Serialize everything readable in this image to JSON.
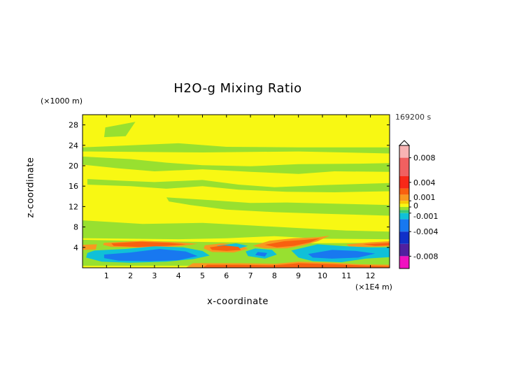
{
  "chart_data": {
    "type": "heatmap",
    "title": "H2O-g Mixing Ratio",
    "xlabel": "x-coordinate",
    "ylabel": "z-coordinate",
    "x_unit": "(×1E4 m)",
    "y_unit": "(×1000 m)",
    "time_label": "169200 s",
    "xlim": [
      0,
      12.8
    ],
    "ylim": [
      0,
      30
    ],
    "xticks": [
      "1",
      "2",
      "3",
      "4",
      "5",
      "6",
      "7",
      "8",
      "9",
      "10",
      "11",
      "12"
    ],
    "yticks": [
      "4",
      "8",
      "12",
      "16",
      "20",
      "24",
      "28"
    ],
    "background_color": "#f8f813",
    "colorbar": {
      "range": [
        -0.01,
        0.01
      ],
      "tick_labels": [
        "0.008",
        "0.004",
        "0.001",
        "0",
        "-0.001",
        "-0.004",
        "-0.008"
      ],
      "tick_values": [
        0.008,
        0.004,
        0.001,
        0,
        -0.001,
        -0.004,
        -0.008
      ],
      "colors": [
        {
          "from": 0.008,
          "to": 0.01,
          "color": "#f8b4b4"
        },
        {
          "from": 0.005,
          "to": 0.008,
          "color": "#f06060"
        },
        {
          "from": 0.003,
          "to": 0.005,
          "color": "#f82818"
        },
        {
          "from": 0.002,
          "to": 0.003,
          "color": "#f86010"
        },
        {
          "from": 0.001,
          "to": 0.002,
          "color": "#f89820"
        },
        {
          "from": 0.0005,
          "to": 0.001,
          "color": "#f8c800"
        },
        {
          "from": 0,
          "to": 0.0005,
          "color": "#f8f813"
        },
        {
          "from": -0.0005,
          "to": 0,
          "color": "#98e030"
        },
        {
          "from": -0.001,
          "to": -0.0005,
          "color": "#38c878"
        },
        {
          "from": -0.002,
          "to": -0.001,
          "color": "#10c0d8"
        },
        {
          "from": -0.004,
          "to": -0.002,
          "color": "#1878f0"
        },
        {
          "from": -0.006,
          "to": -0.004,
          "color": "#1030c8"
        },
        {
          "from": -0.008,
          "to": -0.006,
          "color": "#5020a0"
        },
        {
          "from": -0.01,
          "to": -0.008,
          "color": "#f010c0"
        }
      ]
    },
    "regions": [
      {
        "value": -0.0003,
        "points": [
          [
            0.95,
            27.5
          ],
          [
            2.2,
            28.6
          ],
          [
            1.8,
            25.8
          ],
          [
            0.9,
            25.6
          ]
        ]
      },
      {
        "value": -0.0003,
        "points": [
          [
            0,
            23.6
          ],
          [
            4.0,
            24.4
          ],
          [
            6.0,
            23.7
          ],
          [
            9.0,
            23.6
          ],
          [
            12.8,
            23.6
          ],
          [
            12.8,
            22.4
          ],
          [
            9.0,
            22.8
          ],
          [
            5.0,
            22.6
          ],
          [
            0,
            22.8
          ]
        ]
      },
      {
        "value": -0.0003,
        "points": [
          [
            0,
            21.8
          ],
          [
            2.0,
            21.3
          ],
          [
            3.5,
            20.6
          ],
          [
            5.0,
            20.1
          ],
          [
            7.0,
            19.9
          ],
          [
            9.0,
            20.3
          ],
          [
            11.5,
            20.4
          ],
          [
            12.8,
            20.5
          ],
          [
            12.8,
            18.8
          ],
          [
            10.5,
            18.9
          ],
          [
            9.0,
            18.4
          ],
          [
            7.0,
            18.8
          ],
          [
            5.0,
            19.3
          ],
          [
            3.0,
            18.9
          ],
          [
            1.5,
            19.5
          ],
          [
            0,
            20.2
          ]
        ]
      },
      {
        "value": -0.0003,
        "points": [
          [
            0.2,
            17.4
          ],
          [
            1.5,
            17.1
          ],
          [
            3.0,
            16.8
          ],
          [
            5.0,
            17.2
          ],
          [
            6.5,
            16.3
          ],
          [
            8.0,
            15.8
          ],
          [
            10.0,
            16.2
          ],
          [
            12.8,
            16.6
          ],
          [
            12.8,
            15.0
          ],
          [
            10.5,
            14.8
          ],
          [
            8.5,
            14.9
          ],
          [
            6.5,
            15.3
          ],
          [
            5.0,
            16.0
          ],
          [
            3.5,
            15.5
          ],
          [
            2.0,
            16.0
          ],
          [
            0.2,
            16.3
          ]
        ]
      },
      {
        "value": -0.0003,
        "points": [
          [
            3.5,
            13.8
          ],
          [
            5.5,
            13.2
          ],
          [
            7.0,
            12.7
          ],
          [
            8.5,
            12.8
          ],
          [
            12.8,
            12.3
          ],
          [
            12.8,
            10.2
          ],
          [
            10.0,
            10.6
          ],
          [
            8.0,
            10.9
          ],
          [
            6.0,
            11.4
          ],
          [
            4.5,
            12.3
          ],
          [
            3.6,
            13.0
          ]
        ]
      },
      {
        "value": -0.0003,
        "points": [
          [
            0,
            9.3
          ],
          [
            2.5,
            8.6
          ],
          [
            5.0,
            8.8
          ],
          [
            7.0,
            8.3
          ],
          [
            9.0,
            7.8
          ],
          [
            11.0,
            7.3
          ],
          [
            12.8,
            7.1
          ],
          [
            12.8,
            5.6
          ],
          [
            10.0,
            5.7
          ],
          [
            8.0,
            6.2
          ],
          [
            6.0,
            5.8
          ],
          [
            4.0,
            5.6
          ],
          [
            2.0,
            5.7
          ],
          [
            0,
            5.8
          ]
        ]
      },
      {
        "value": -0.0003,
        "points": [
          [
            0,
            5.5
          ],
          [
            3.0,
            5.2
          ],
          [
            6.0,
            5.0
          ],
          [
            9.0,
            4.8
          ],
          [
            12.8,
            4.9
          ],
          [
            12.8,
            0.4
          ],
          [
            0,
            0.4
          ]
        ]
      },
      {
        "value": 0.0015,
        "points": [
          [
            0,
            4.5
          ],
          [
            0.6,
            4.6
          ],
          [
            0.55,
            3.6
          ],
          [
            0,
            3.5
          ]
        ]
      },
      {
        "value": 0.0015,
        "points": [
          [
            0.9,
            4.9
          ],
          [
            2.5,
            5.3
          ],
          [
            4.0,
            5.0
          ],
          [
            4.8,
            4.7
          ],
          [
            4.0,
            4.2
          ],
          [
            2.6,
            3.9
          ],
          [
            1.2,
            4.1
          ],
          [
            0.85,
            4.5
          ]
        ]
      },
      {
        "value": 0.0015,
        "points": [
          [
            5.1,
            4.4
          ],
          [
            5.8,
            4.8
          ],
          [
            6.6,
            4.5
          ],
          [
            6.9,
            3.7
          ],
          [
            6.3,
            3.0
          ],
          [
            5.4,
            3.1
          ],
          [
            5.05,
            3.8
          ]
        ]
      },
      {
        "value": 0.0015,
        "points": [
          [
            7.1,
            4.3
          ],
          [
            7.8,
            5.3
          ],
          [
            8.8,
            5.8
          ],
          [
            9.8,
            6.0
          ],
          [
            10.3,
            6.3
          ],
          [
            9.8,
            5.2
          ],
          [
            9.2,
            4.4
          ],
          [
            8.5,
            3.8
          ],
          [
            7.6,
            3.8
          ]
        ]
      },
      {
        "value": 0.0015,
        "points": [
          [
            11.0,
            4.6
          ],
          [
            12.0,
            5.0
          ],
          [
            12.8,
            5.2
          ],
          [
            12.8,
            4.2
          ],
          [
            11.8,
            4.1
          ],
          [
            11.1,
            4.2
          ]
        ]
      },
      {
        "value": 0.0015,
        "points": [
          [
            4.6,
            0.9
          ],
          [
            6.5,
            0.9
          ],
          [
            8.0,
            0.8
          ],
          [
            9.0,
            1.2
          ],
          [
            10.5,
            1.0
          ],
          [
            11.5,
            0.7
          ],
          [
            12.8,
            0.6
          ],
          [
            12.8,
            0
          ],
          [
            4.3,
            0
          ]
        ]
      },
      {
        "value": -0.0013,
        "points": [
          [
            0.5,
            3.4
          ],
          [
            1.8,
            3.7
          ],
          [
            3.0,
            4.2
          ],
          [
            4.2,
            4.0
          ],
          [
            5.0,
            3.3
          ],
          [
            5.3,
            2.4
          ],
          [
            4.6,
            1.7
          ],
          [
            3.5,
            1.2
          ],
          [
            2.0,
            1.0
          ],
          [
            0.8,
            1.2
          ],
          [
            0.15,
            2.0
          ],
          [
            0.2,
            2.9
          ]
        ]
      },
      {
        "value": -0.0013,
        "points": [
          [
            5.6,
            4.3
          ],
          [
            6.4,
            4.8
          ],
          [
            6.9,
            4.3
          ],
          [
            6.4,
            3.6
          ],
          [
            5.8,
            3.8
          ]
        ]
      },
      {
        "value": -0.0013,
        "points": [
          [
            7.2,
            3.8
          ],
          [
            7.9,
            3.5
          ],
          [
            8.1,
            2.6
          ],
          [
            7.6,
            1.8
          ],
          [
            6.9,
            2.3
          ],
          [
            6.8,
            3.2
          ]
        ]
      },
      {
        "value": -0.0013,
        "points": [
          [
            8.7,
            3.4
          ],
          [
            9.8,
            4.6
          ],
          [
            11.0,
            4.2
          ],
          [
            12.0,
            4.0
          ],
          [
            12.8,
            4.0
          ],
          [
            12.8,
            2.1
          ],
          [
            11.8,
            1.8
          ],
          [
            10.8,
            1.1
          ],
          [
            9.6,
            1.3
          ],
          [
            9.0,
            2.0
          ]
        ]
      },
      {
        "value": -0.003,
        "points": [
          [
            0.9,
            2.6
          ],
          [
            2.0,
            3.0
          ],
          [
            3.2,
            3.7
          ],
          [
            4.3,
            3.2
          ],
          [
            4.8,
            2.3
          ],
          [
            4.0,
            1.5
          ],
          [
            2.8,
            1.3
          ],
          [
            1.5,
            1.4
          ],
          [
            0.9,
            1.9
          ]
        ]
      },
      {
        "value": -0.003,
        "points": [
          [
            9.4,
            2.7
          ],
          [
            10.4,
            3.5
          ],
          [
            11.4,
            3.3
          ],
          [
            12.2,
            2.8
          ],
          [
            11.5,
            2.0
          ],
          [
            10.4,
            1.8
          ],
          [
            9.6,
            2.0
          ]
        ]
      },
      {
        "value": -0.003,
        "points": [
          [
            7.3,
            3.1
          ],
          [
            7.7,
            2.9
          ],
          [
            7.6,
            2.2
          ],
          [
            7.2,
            2.5
          ]
        ]
      },
      {
        "value": 0.0025,
        "points": [
          [
            1.2,
            4.8
          ],
          [
            2.4,
            5.1
          ],
          [
            3.6,
            4.9
          ],
          [
            4.3,
            4.6
          ],
          [
            3.5,
            4.3
          ],
          [
            2.3,
            4.1
          ],
          [
            1.3,
            4.3
          ]
        ]
      },
      {
        "value": 0.0025,
        "points": [
          [
            7.6,
            4.5
          ],
          [
            8.4,
            5.2
          ],
          [
            9.3,
            5.5
          ],
          [
            9.9,
            5.8
          ],
          [
            9.5,
            5.0
          ],
          [
            8.8,
            4.3
          ],
          [
            8.1,
            4.0
          ]
        ]
      },
      {
        "value": 0.0025,
        "points": [
          [
            5.3,
            4.0
          ],
          [
            5.9,
            4.4
          ],
          [
            6.5,
            4.1
          ],
          [
            6.6,
            3.5
          ],
          [
            6.0,
            3.3
          ],
          [
            5.4,
            3.5
          ]
        ]
      },
      {
        "value": 0.0025,
        "points": [
          [
            11.7,
            4.6
          ],
          [
            12.4,
            4.8
          ],
          [
            12.8,
            4.9
          ],
          [
            12.8,
            4.4
          ],
          [
            12.2,
            4.3
          ]
        ]
      },
      {
        "value": 0.0025,
        "points": [
          [
            5.2,
            0.6
          ],
          [
            6.5,
            0.6
          ],
          [
            8.0,
            0.5
          ],
          [
            9.0,
            0.9
          ],
          [
            10.5,
            0.7
          ],
          [
            12.0,
            0.4
          ],
          [
            12.8,
            0.3
          ],
          [
            12.8,
            0
          ],
          [
            5.0,
            0
          ]
        ]
      }
    ]
  }
}
